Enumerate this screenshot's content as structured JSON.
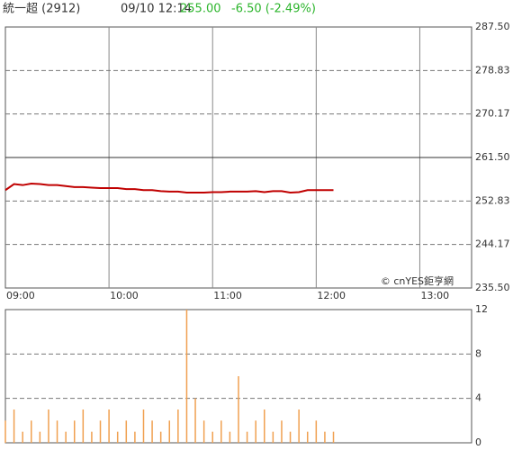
{
  "header": {
    "name": "統一超 (2912)",
    "datetime": "09/10 12:14",
    "price": "255.00",
    "change": "-6.50 (-2.49%)"
  },
  "chart_data": [
    {
      "type": "line",
      "annotation": "© cnYES鉅亨網",
      "x": [
        "09:00",
        "09:05",
        "09:10",
        "09:15",
        "09:20",
        "09:25",
        "09:30",
        "09:35",
        "09:40",
        "09:45",
        "09:50",
        "09:55",
        "10:00",
        "10:05",
        "10:10",
        "10:15",
        "10:20",
        "10:25",
        "10:30",
        "10:35",
        "10:40",
        "10:45",
        "10:50",
        "10:55",
        "11:00",
        "11:05",
        "11:10",
        "11:15",
        "11:20",
        "11:25",
        "11:30",
        "11:35",
        "11:40",
        "11:45",
        "11:50",
        "11:55",
        "12:00",
        "12:05",
        "12:10"
      ],
      "series": [
        {
          "name": "price",
          "color": "#c00000",
          "values": [
            255.0,
            256.2,
            256.0,
            256.3,
            256.2,
            256.0,
            256.0,
            255.8,
            255.6,
            255.6,
            255.5,
            255.4,
            255.4,
            255.4,
            255.2,
            255.2,
            255.0,
            255.0,
            254.8,
            254.7,
            254.7,
            254.5,
            254.5,
            254.5,
            254.6,
            254.6,
            254.7,
            254.7,
            254.7,
            254.8,
            254.6,
            254.8,
            254.8,
            254.5,
            254.6,
            255.0,
            255.0,
            255.0,
            255.0
          ]
        }
      ],
      "xlim": [
        "09:00",
        "13:30"
      ],
      "xticks": [
        "09:00",
        "10:00",
        "11:00",
        "12:00",
        "13:00"
      ],
      "ylim": [
        235.5,
        287.5
      ],
      "baseline": 261.5,
      "yticks": [
        {
          "value": 287.5,
          "label": "287.50"
        },
        {
          "value": 278.83,
          "label": "278.83"
        },
        {
          "value": 270.17,
          "label": "270.17"
        },
        {
          "value": 261.5,
          "label": "261.50"
        },
        {
          "value": 252.83,
          "label": "252.83"
        },
        {
          "value": 244.17,
          "label": "244.17"
        },
        {
          "value": 235.5,
          "label": "235.50"
        }
      ]
    },
    {
      "type": "bar",
      "x": [
        "09:00",
        "09:05",
        "09:10",
        "09:15",
        "09:20",
        "09:25",
        "09:30",
        "09:35",
        "09:40",
        "09:45",
        "09:50",
        "09:55",
        "10:00",
        "10:05",
        "10:10",
        "10:15",
        "10:20",
        "10:25",
        "10:30",
        "10:35",
        "10:40",
        "10:45",
        "10:50",
        "10:55",
        "11:00",
        "11:05",
        "11:10",
        "11:15",
        "11:20",
        "11:25",
        "11:30",
        "11:35",
        "11:40",
        "11:45",
        "11:50",
        "11:55",
        "12:00",
        "12:05",
        "12:10"
      ],
      "series": [
        {
          "name": "volume",
          "color": "#f0a050",
          "values": [
            2,
            3,
            1,
            2,
            1,
            3,
            2,
            1,
            2,
            3,
            1,
            2,
            3,
            1,
            2,
            1,
            3,
            2,
            1,
            2,
            3,
            12,
            4,
            2,
            1,
            2,
            1,
            6,
            1,
            2,
            3,
            1,
            2,
            1,
            3,
            1,
            2,
            1,
            1
          ]
        }
      ],
      "xlim": [
        "09:00",
        "13:30"
      ],
      "ylim": [
        0,
        12
      ],
      "yticks": [
        0,
        4,
        8,
        12
      ]
    }
  ]
}
